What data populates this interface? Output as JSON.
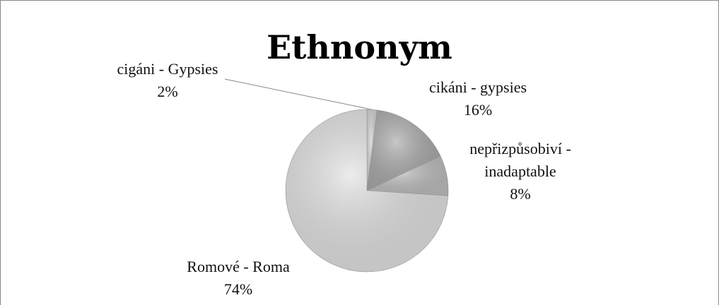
{
  "chart_data": {
    "type": "pie",
    "title": "Ethnonym",
    "categories": [
      "cigáni - Gypsies",
      "cikáni - gypsies",
      "nepřizpůsobiví - inadaptable",
      "Romové - Roma"
    ],
    "values": [
      2,
      16,
      8,
      74
    ],
    "value_labels": [
      "2%",
      "16%",
      "8%",
      "74%"
    ],
    "colors": [
      "#d2d2d2",
      "#a9a9a9",
      "#bdbdbd",
      "#e2e2e2"
    ]
  }
}
